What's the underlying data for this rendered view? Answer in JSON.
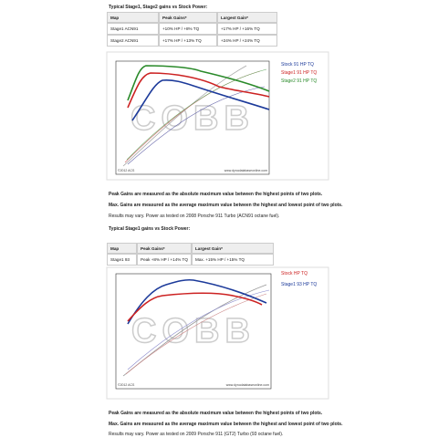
{
  "sections": [
    {
      "heading": "Typical Stage1, Stage2 gains vs Stock Power:",
      "table": {
        "header": [
          "Map",
          "Peak Gains*",
          "Largest Gain*"
        ],
        "rows": [
          [
            "Stage1 ACN91",
            "+10% HP / +8% TQ",
            "+17% HP / +16% TQ"
          ],
          [
            "Stage2 ACN91",
            "+17% HP / +13% TQ",
            "+24% HP / +24% TQ"
          ]
        ]
      },
      "chart": {
        "legend": [
          "Stock 91  HP TQ",
          "Stage1 91  HP TQ",
          "Stage2 91  HP TQ"
        ],
        "watermark": "COBB",
        "copyright": "©2012 ACS",
        "source": "www.dynodatabaseonline.com"
      },
      "notes": [
        "Peak Gains are measured as the absolute maximum value between the highest points of two plots.",
        "Max. Gains are measured as the average maximum value between the highest and lowest point of two plots.",
        "Results may vary. Power as tested on 2008 Porsche 911 Turbo (ACN91 octane fuel)."
      ]
    },
    {
      "heading": "Typical Stage1 gains vs Stock Power:",
      "table": {
        "header": [
          "Map",
          "Peak Gains*",
          "Largest Gain*"
        ],
        "rows": [
          [
            "Stage1 93",
            "Peak +8% HP / +14% TQ",
            "Max. +15% HP / +15% TQ"
          ]
        ]
      },
      "chart": {
        "legend": [
          "Stock  HP TQ",
          "Stage1 93  HP TQ"
        ],
        "watermark": "COBB",
        "copyright": "©2012 ACS",
        "source": "www.dynodatabaseonline.com"
      },
      "notes": [
        "Peak Gains are measured as the absolute maximum value between the highest points of two plots.",
        "Max. Gains are measured as the average maximum value between the highest and lowest point of two plots.",
        "Results may vary. Power as tested on 2009 Porsche 911 (GT2) Turbo (93 octane fuel)."
      ]
    }
  ]
}
